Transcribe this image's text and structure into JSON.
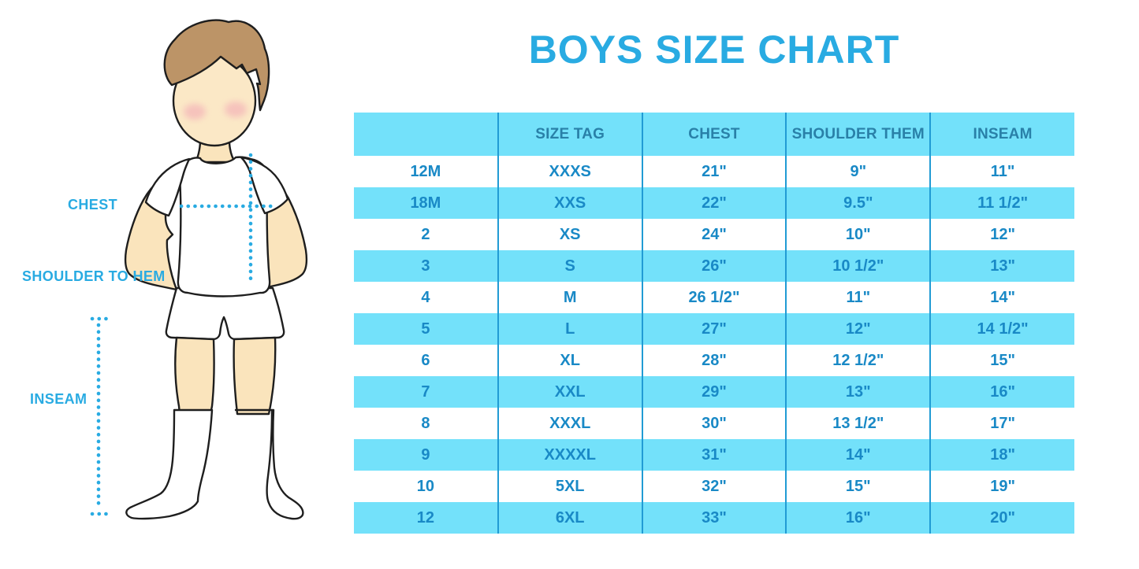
{
  "title": "BOYS SIZE CHART",
  "figure": {
    "labels": {
      "chest": "CHEST",
      "shoulder_to_hem": "SHOULDER TO HEM",
      "inseam": "INSEAM"
    }
  },
  "colors": {
    "accent_cyan": "#29ABE2",
    "band_cyan": "#73E1FA",
    "header_text": "#2980A8",
    "cell_text": "#1989C6",
    "divider_blue": "#219BD4",
    "skin": "#FAE4BC",
    "hair": "#BC9467"
  },
  "chart_data": {
    "type": "table",
    "title": "BOYS SIZE CHART",
    "columns": [
      "",
      "SIZE TAG",
      "CHEST",
      "SHOULDER THEM",
      "INSEAM"
    ],
    "rows": [
      [
        "12M",
        "XXXS",
        "21\"",
        "9\"",
        "11\""
      ],
      [
        "18M",
        "XXS",
        "22\"",
        "9.5\"",
        "11 1/2\""
      ],
      [
        "2",
        "XS",
        "24\"",
        "10\"",
        "12\""
      ],
      [
        "3",
        "S",
        "26\"",
        "10 1/2\"",
        "13\""
      ],
      [
        "4",
        "M",
        "26 1/2\"",
        "11\"",
        "14\""
      ],
      [
        "5",
        "L",
        "27\"",
        "12\"",
        "14 1/2\""
      ],
      [
        "6",
        "XL",
        "28\"",
        "12 1/2\"",
        "15\""
      ],
      [
        "7",
        "XXL",
        "29\"",
        "13\"",
        "16\""
      ],
      [
        "8",
        "XXXL",
        "30\"",
        "13 1/2\"",
        "17\""
      ],
      [
        "9",
        "XXXXL",
        "31\"",
        "14\"",
        "18\""
      ],
      [
        "10",
        "5XL",
        "32\"",
        "15\"",
        "19\""
      ],
      [
        "12",
        "6XL",
        "33\"",
        "16\"",
        "20\""
      ]
    ]
  }
}
